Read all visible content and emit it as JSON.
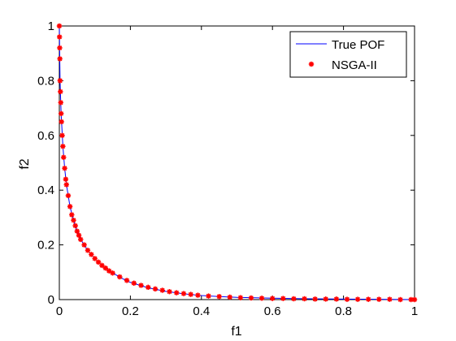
{
  "chart_data": {
    "type": "line",
    "title": "",
    "xlabel": "f1",
    "ylabel": "f2",
    "xlim": [
      0,
      1
    ],
    "ylim": [
      0,
      1
    ],
    "xticks": [
      "0",
      "0.2",
      "0.4",
      "0.6",
      "0.8",
      "1"
    ],
    "yticks": [
      "0",
      "0.2",
      "0.4",
      "0.6",
      "0.8",
      "1"
    ],
    "grid": false,
    "legend_position": "top-right",
    "series": [
      {
        "name": "True POF",
        "style": "line",
        "color": "#0000ff",
        "x": [
          0,
          0.002,
          0.005,
          0.01,
          0.015,
          0.02,
          0.03,
          0.04,
          0.05,
          0.06,
          0.08,
          0.1,
          0.12,
          0.14,
          0.16,
          0.18,
          0.2,
          0.25,
          0.3,
          0.35,
          0.4,
          0.45,
          0.5,
          0.6,
          0.7,
          0.8,
          0.9,
          1.0
        ],
        "y": [
          1.0,
          0.8,
          0.68,
          0.56,
          0.48,
          0.42,
          0.34,
          0.29,
          0.25,
          0.22,
          0.18,
          0.15,
          0.125,
          0.105,
          0.09,
          0.075,
          0.063,
          0.043,
          0.03,
          0.021,
          0.015,
          0.011,
          0.008,
          0.005,
          0.003,
          0.002,
          0.001,
          0.0
        ]
      },
      {
        "name": "NSGA-II",
        "style": "markers",
        "color": "#ff0000",
        "x": [
          0,
          0.0005,
          0.001,
          0.0015,
          0.002,
          0.003,
          0.004,
          0.005,
          0.006,
          0.008,
          0.01,
          0.012,
          0.015,
          0.018,
          0.02,
          0.025,
          0.03,
          0.035,
          0.04,
          0.045,
          0.05,
          0.055,
          0.06,
          0.07,
          0.08,
          0.09,
          0.1,
          0.11,
          0.12,
          0.13,
          0.14,
          0.15,
          0.17,
          0.19,
          0.21,
          0.23,
          0.25,
          0.27,
          0.29,
          0.31,
          0.33,
          0.35,
          0.37,
          0.39,
          0.42,
          0.45,
          0.48,
          0.51,
          0.54,
          0.57,
          0.6,
          0.63,
          0.66,
          0.69,
          0.72,
          0.75,
          0.78,
          0.81,
          0.84,
          0.87,
          0.9,
          0.93,
          0.96,
          0.99,
          1.0
        ],
        "y": [
          1.0,
          0.96,
          0.92,
          0.88,
          0.8,
          0.76,
          0.72,
          0.68,
          0.65,
          0.6,
          0.56,
          0.52,
          0.48,
          0.44,
          0.42,
          0.38,
          0.34,
          0.31,
          0.29,
          0.27,
          0.25,
          0.235,
          0.22,
          0.2,
          0.18,
          0.165,
          0.15,
          0.137,
          0.125,
          0.115,
          0.105,
          0.097,
          0.083,
          0.07,
          0.06,
          0.052,
          0.045,
          0.039,
          0.034,
          0.029,
          0.025,
          0.022,
          0.019,
          0.016,
          0.013,
          0.011,
          0.009,
          0.007,
          0.006,
          0.005,
          0.004,
          0.004,
          0.003,
          0.003,
          0.002,
          0.002,
          0.002,
          0.001,
          0.001,
          0.001,
          0.001,
          0.001,
          0.0,
          0.0,
          0.0
        ]
      }
    ]
  }
}
